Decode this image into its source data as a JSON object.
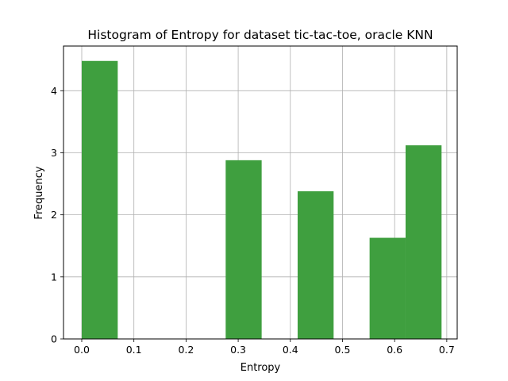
{
  "chart_data": {
    "type": "bar",
    "title": "Histogram of Entropy for dataset tic-tac-toe, oracle KNN",
    "xlabel": "Entropy",
    "ylabel": "Frequency",
    "xlim": [
      -0.035,
      0.72
    ],
    "ylim": [
      0,
      4.72
    ],
    "grid": true,
    "bar_color": "#3f9f3f",
    "x_ticks": [
      0.0,
      0.1,
      0.2,
      0.3,
      0.4,
      0.5,
      0.6,
      0.7
    ],
    "x_tick_labels": [
      "0.0",
      "0.1",
      "0.2",
      "0.3",
      "0.4",
      "0.5",
      "0.6",
      "0.7"
    ],
    "y_ticks": [
      0,
      1,
      2,
      3,
      4
    ],
    "y_tick_labels": [
      "0",
      "1",
      "2",
      "3",
      "4"
    ],
    "bins": [
      {
        "x0": 0.0,
        "x1": 0.069,
        "value": 4.48
      },
      {
        "x0": 0.069,
        "x1": 0.138,
        "value": 0
      },
      {
        "x0": 0.138,
        "x1": 0.207,
        "value": 0
      },
      {
        "x0": 0.207,
        "x1": 0.276,
        "value": 0
      },
      {
        "x0": 0.276,
        "x1": 0.345,
        "value": 2.88
      },
      {
        "x0": 0.345,
        "x1": 0.414,
        "value": 0
      },
      {
        "x0": 0.414,
        "x1": 0.483,
        "value": 2.38
      },
      {
        "x0": 0.483,
        "x1": 0.552,
        "value": 0
      },
      {
        "x0": 0.552,
        "x1": 0.621,
        "value": 1.63
      },
      {
        "x0": 0.621,
        "x1": 0.69,
        "value": 3.12
      }
    ]
  }
}
